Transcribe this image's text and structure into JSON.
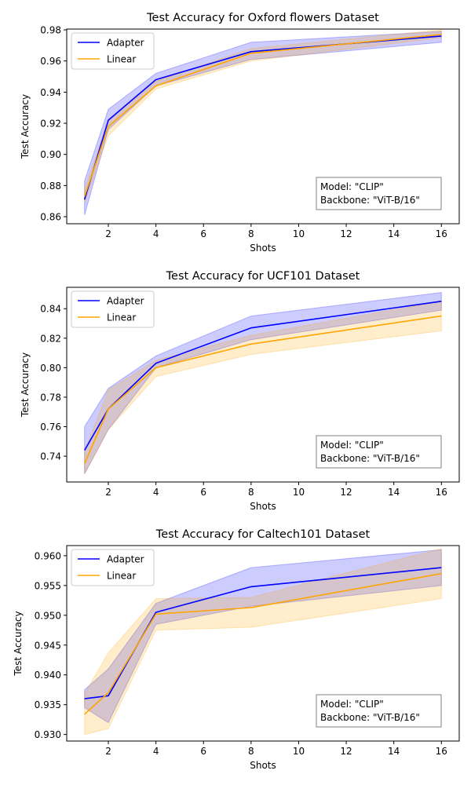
{
  "chart_data": [
    {
      "type": "line",
      "title": "Test Accuracy for Oxford flowers Dataset",
      "xlabel": "Shots",
      "ylabel": "Test Accuracy",
      "xlim": [
        0.25,
        16.75
      ],
      "ylim": [
        0.8555,
        0.9805
      ],
      "xticks": [
        2,
        4,
        6,
        8,
        10,
        12,
        14,
        16
      ],
      "yticks": [
        0.86,
        0.88,
        0.9,
        0.92,
        0.94,
        0.96,
        0.98
      ],
      "ytick_labels": [
        "0.86",
        "0.88",
        "0.90",
        "0.92",
        "0.94",
        "0.96",
        "0.98"
      ],
      "legend_placement": "upper-left",
      "annotation": [
        "Model: \"CLIP\"",
        "Backbone: \"ViT-B/16\""
      ],
      "x": [
        1,
        2,
        4,
        8,
        16
      ],
      "series": [
        {
          "name": "Adapter",
          "color": "#0000ff",
          "values": [
            0.871,
            0.922,
            0.948,
            0.966,
            0.976
          ],
          "lower": [
            0.861,
            0.916,
            0.944,
            0.961,
            0.972
          ],
          "upper": [
            0.883,
            0.929,
            0.952,
            0.972,
            0.979
          ]
        },
        {
          "name": "Linear",
          "color": "#ffa500",
          "values": [
            0.873,
            0.918,
            0.944,
            0.965,
            0.977
          ],
          "lower": [
            0.869,
            0.912,
            0.942,
            0.96,
            0.975
          ],
          "upper": [
            0.878,
            0.921,
            0.947,
            0.968,
            0.98
          ]
        }
      ]
    },
    {
      "type": "line",
      "title": "Test Accuracy for UCF101 Dataset",
      "xlabel": "Shots",
      "ylabel": "Test Accuracy",
      "xlim": [
        0.25,
        16.75
      ],
      "ylim": [
        0.7225,
        0.8545
      ],
      "xticks": [
        2,
        4,
        6,
        8,
        10,
        12,
        14,
        16
      ],
      "yticks": [
        0.74,
        0.76,
        0.78,
        0.8,
        0.82,
        0.84
      ],
      "ytick_labels": [
        "0.74",
        "0.76",
        "0.78",
        "0.80",
        "0.82",
        "0.84"
      ],
      "legend_placement": "upper-left",
      "annotation": [
        "Model: \"CLIP\"",
        "Backbone: \"ViT-B/16\""
      ],
      "x": [
        1,
        2,
        4,
        8,
        16
      ],
      "series": [
        {
          "name": "Adapter",
          "color": "#0000ff",
          "values": [
            0.744,
            0.772,
            0.803,
            0.827,
            0.845
          ],
          "lower": [
            0.728,
            0.758,
            0.8,
            0.819,
            0.839
          ],
          "upper": [
            0.76,
            0.786,
            0.808,
            0.835,
            0.851
          ]
        },
        {
          "name": "Linear",
          "color": "#ffa500",
          "values": [
            0.735,
            0.772,
            0.8,
            0.816,
            0.835
          ],
          "lower": [
            0.728,
            0.758,
            0.794,
            0.809,
            0.825
          ],
          "upper": [
            0.743,
            0.785,
            0.805,
            0.822,
            0.845
          ]
        }
      ]
    },
    {
      "type": "line",
      "title": "Test Accuracy for Caltech101 Dataset",
      "xlabel": "Shots",
      "ylabel": "Test Accuracy",
      "xlim": [
        0.25,
        16.75
      ],
      "ylim": [
        0.9289,
        0.9617
      ],
      "xticks": [
        2,
        4,
        6,
        8,
        10,
        12,
        14,
        16
      ],
      "yticks": [
        0.93,
        0.935,
        0.94,
        0.945,
        0.95,
        0.955,
        0.96
      ],
      "ytick_labels": [
        "0.930",
        "0.935",
        "0.940",
        "0.945",
        "0.950",
        "0.955",
        "0.960"
      ],
      "legend_placement": "upper-left",
      "annotation": [
        "Model: \"CLIP\"",
        "Backbone: \"ViT-B/16\""
      ],
      "x": [
        1,
        2,
        4,
        8,
        16
      ],
      "series": [
        {
          "name": "Adapter",
          "color": "#0000ff",
          "values": [
            0.936,
            0.9365,
            0.9505,
            0.9548,
            0.958
          ],
          "lower": [
            0.9345,
            0.932,
            0.9485,
            0.9515,
            0.955
          ],
          "upper": [
            0.9375,
            0.941,
            0.952,
            0.958,
            0.961
          ]
        },
        {
          "name": "Linear",
          "color": "#ffa500",
          "values": [
            0.9334,
            0.937,
            0.9502,
            0.9513,
            0.957
          ],
          "lower": [
            0.93,
            0.931,
            0.9475,
            0.948,
            0.9528
          ],
          "upper": [
            0.9368,
            0.9437,
            0.9528,
            0.953,
            0.9612
          ]
        }
      ]
    }
  ]
}
